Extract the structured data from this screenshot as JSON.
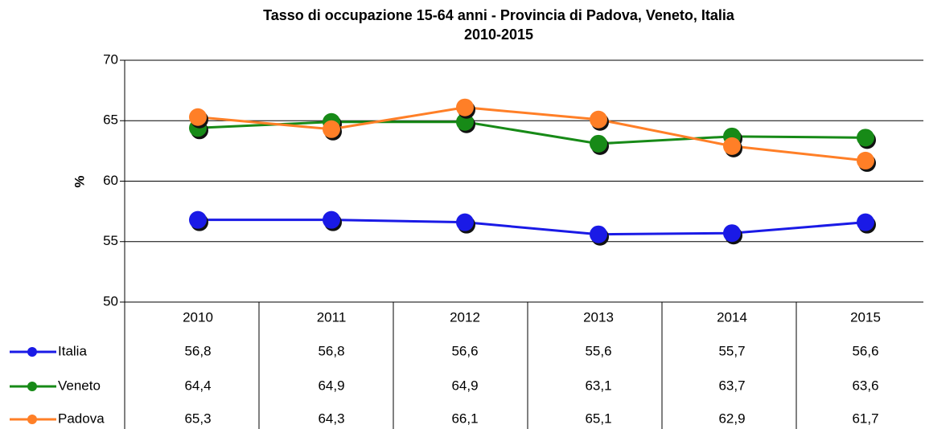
{
  "chart_data": {
    "type": "line",
    "title": "Tasso di occupazione 15-64 anni - Provincia di Padova, Veneto, Italia",
    "subtitle": "2010-2015",
    "y_label": "%",
    "categories": [
      "2010",
      "2011",
      "2012",
      "2013",
      "2014",
      "2015"
    ],
    "series": [
      {
        "name": "Italia",
        "color": "#1a1ae6",
        "values": [
          56.8,
          56.8,
          56.6,
          55.6,
          55.7,
          56.6
        ],
        "value_labels": [
          "56,8",
          "56,8",
          "56,6",
          "55,6",
          "55,7",
          "56,6"
        ]
      },
      {
        "name": "Veneto",
        "color": "#178a17",
        "values": [
          64.4,
          64.9,
          64.9,
          63.1,
          63.7,
          63.6
        ],
        "value_labels": [
          "64,4",
          "64,9",
          "64,9",
          "63,1",
          "63,7",
          "63,6"
        ]
      },
      {
        "name": "Padova",
        "color": "#ff7f27",
        "values": [
          65.3,
          64.3,
          66.1,
          65.1,
          62.9,
          61.7
        ],
        "value_labels": [
          "65,3",
          "64,3",
          "66,1",
          "65,1",
          "62,9",
          "61,7"
        ]
      }
    ],
    "ylim": [
      50,
      70
    ],
    "yticks": [
      50,
      55,
      60,
      65,
      70
    ],
    "grid": true
  }
}
